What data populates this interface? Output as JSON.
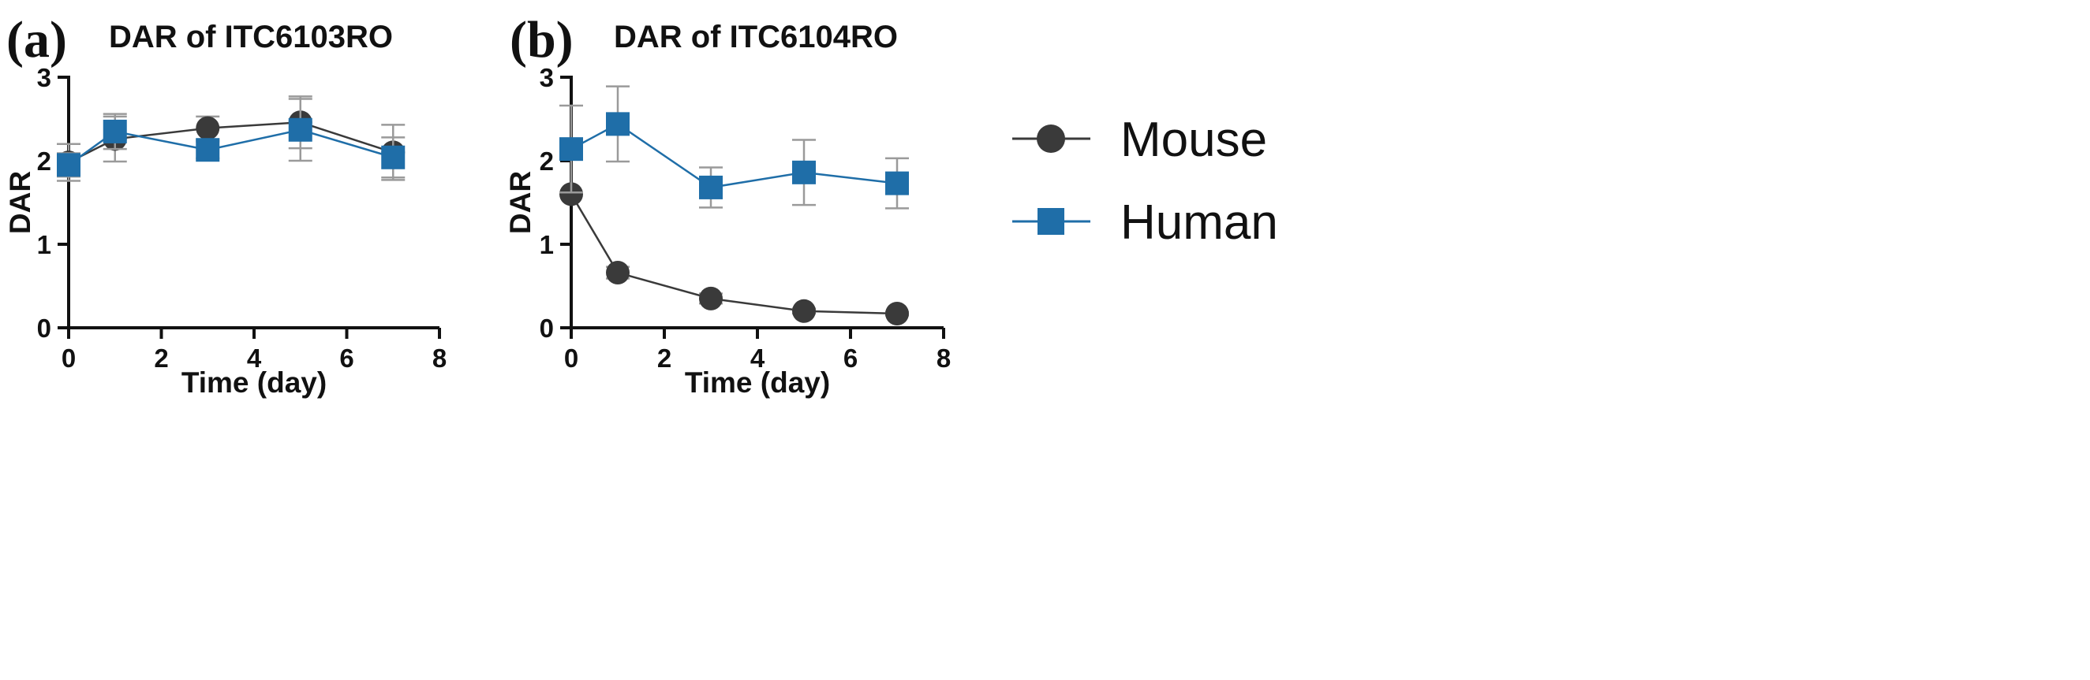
{
  "legend": {
    "series": [
      {
        "name": "Mouse",
        "color": "#3a3a3a",
        "marker": "circle"
      },
      {
        "name": "Human",
        "color": "#1f6ea8",
        "marker": "square"
      }
    ]
  },
  "chart_data": [
    {
      "type": "line",
      "panel": "(a)",
      "title": "DAR of ITC6103RO",
      "xlabel": "Time (day)",
      "ylabel": "DAR",
      "xlim": [
        0,
        8
      ],
      "ylim": [
        0,
        3
      ],
      "xticks": [
        0,
        2,
        4,
        6,
        8
      ],
      "yticks": [
        0,
        1,
        2,
        3
      ],
      "x": [
        0,
        1,
        3,
        5,
        7
      ],
      "series": [
        {
          "name": "Mouse",
          "values": [
            1.98,
            2.26,
            2.39,
            2.46,
            2.1
          ],
          "errors": [
            0.22,
            0.27,
            0.14,
            0.31,
            0.33
          ]
        },
        {
          "name": "Human",
          "values": [
            1.95,
            2.35,
            2.13,
            2.37,
            2.04
          ],
          "errors": [
            0.14,
            0.21,
            0.1,
            0.37,
            0.24
          ]
        }
      ]
    },
    {
      "type": "line",
      "panel": "(b)",
      "title": "DAR of ITC6104RO",
      "xlabel": "Time (day)",
      "ylabel": "DAR",
      "xlim": [
        0,
        8
      ],
      "ylim": [
        0,
        3
      ],
      "xticks": [
        0,
        2,
        4,
        6,
        8
      ],
      "yticks": [
        0,
        1,
        2,
        3
      ],
      "x": [
        0,
        1,
        3,
        5,
        7
      ],
      "series": [
        {
          "name": "Mouse",
          "values": [
            1.6,
            0.66,
            0.35,
            0.2,
            0.17
          ],
          "errors": [
            0.0,
            0.07,
            0.06,
            0.03,
            0.02
          ]
        },
        {
          "name": "Human",
          "values": [
            2.14,
            2.44,
            1.68,
            1.86,
            1.73
          ],
          "errors": [
            0.52,
            0.45,
            0.24,
            0.39,
            0.3
          ]
        }
      ]
    }
  ]
}
